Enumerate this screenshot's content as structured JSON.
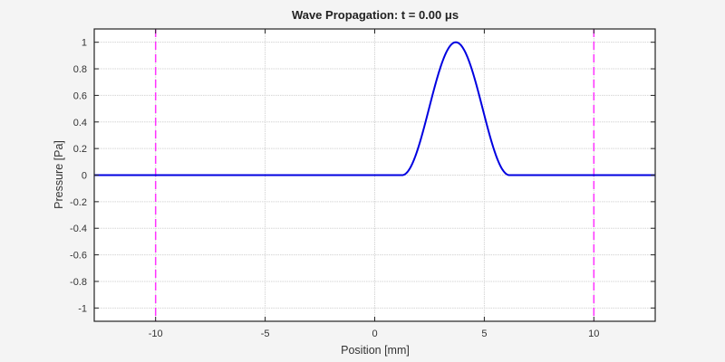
{
  "chart_data": {
    "type": "line",
    "title": "Wave  Propagation:  t  =  0.00  μs",
    "xlabel": "Position [mm]",
    "ylabel": "Pressure [Pa]",
    "xlim": [
      -12.8,
      12.8
    ],
    "ylim": [
      -1.1,
      1.1
    ],
    "xticks": [
      -10,
      -5,
      0,
      5,
      10
    ],
    "xtick_labels": [
      "-10",
      "-5",
      "0",
      "5",
      "10"
    ],
    "yticks": [
      1,
      0.8,
      0.6,
      0.4,
      0.2,
      0,
      -0.2,
      -0.4,
      -0.6,
      -0.8,
      -1
    ],
    "ytick_labels": [
      "1",
      "0.8",
      "0.6",
      "0.4",
      "0.2",
      "0",
      "-0.2",
      "-0.4",
      "-0.6",
      "-0.8",
      "-1"
    ],
    "grid": true,
    "series": [
      {
        "name": "pressure",
        "color": "#0000e0",
        "style": "solid",
        "shape": "hann pulse",
        "center": 3.7,
        "half_width": 2.45,
        "amplitude": 1.0,
        "x": [
          -12.8,
          1.25,
          1.86,
          2.48,
          3.09,
          3.7,
          4.31,
          4.93,
          5.54,
          6.15,
          12.8
        ],
        "y": [
          0,
          0,
          0.15,
          0.5,
          0.85,
          1.0,
          0.85,
          0.5,
          0.15,
          0,
          0
        ]
      }
    ],
    "vlines": [
      {
        "x": -10,
        "color": "#ff33ff",
        "style": "dashed"
      },
      {
        "x": 10,
        "color": "#ff33ff",
        "style": "dashed"
      }
    ]
  }
}
